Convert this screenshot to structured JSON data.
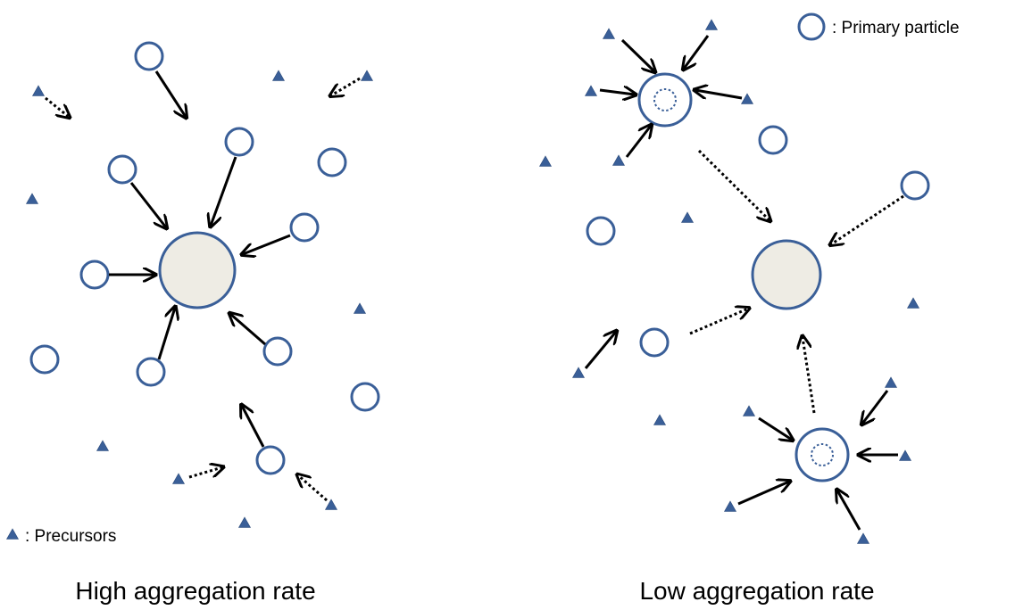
{
  "legend": {
    "primary_particle": ": Primary particle",
    "precursors": ": Precursors"
  },
  "panels": {
    "high": {
      "caption": "High aggregation rate"
    },
    "low": {
      "caption": "Low aggregation rate"
    }
  },
  "colors": {
    "particle_stroke": "#3A5F98",
    "precursor_fill": "#3A5F98",
    "large_particle_fill": "#EEECE4",
    "arrow": "#000000"
  },
  "icons": {
    "primary_particle": "hollow-circle-icon",
    "precursor": "triangle-icon"
  }
}
